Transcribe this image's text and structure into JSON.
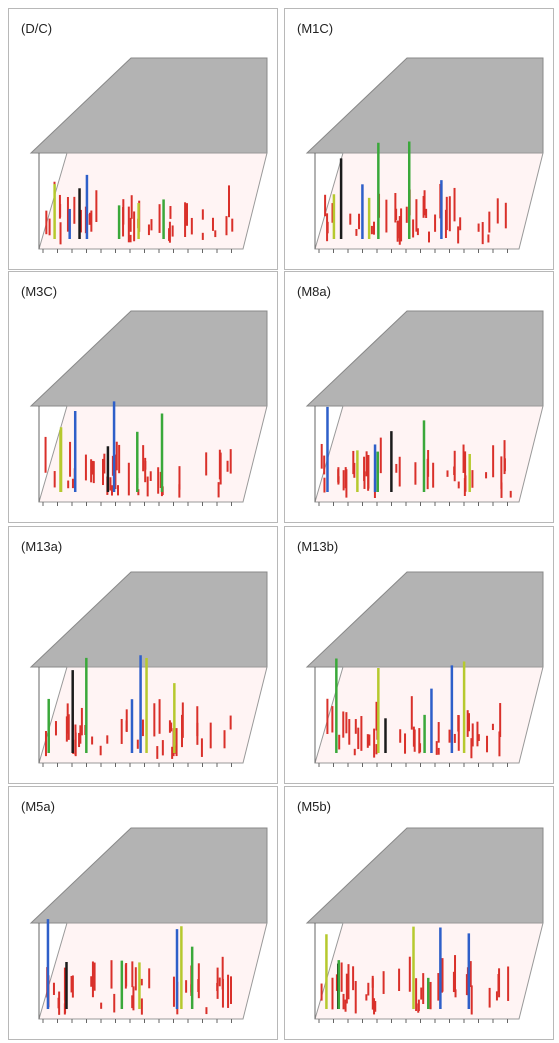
{
  "panels": [
    {
      "label": "(D/C)"
    },
    {
      "label": "(M1C)"
    },
    {
      "label": "(M3C)"
    },
    {
      "label": "(M8a)"
    },
    {
      "label": "(M13a)"
    },
    {
      "label": "(M13b)"
    },
    {
      "label": "(M5a)"
    },
    {
      "label": "(M5b)"
    }
  ]
}
